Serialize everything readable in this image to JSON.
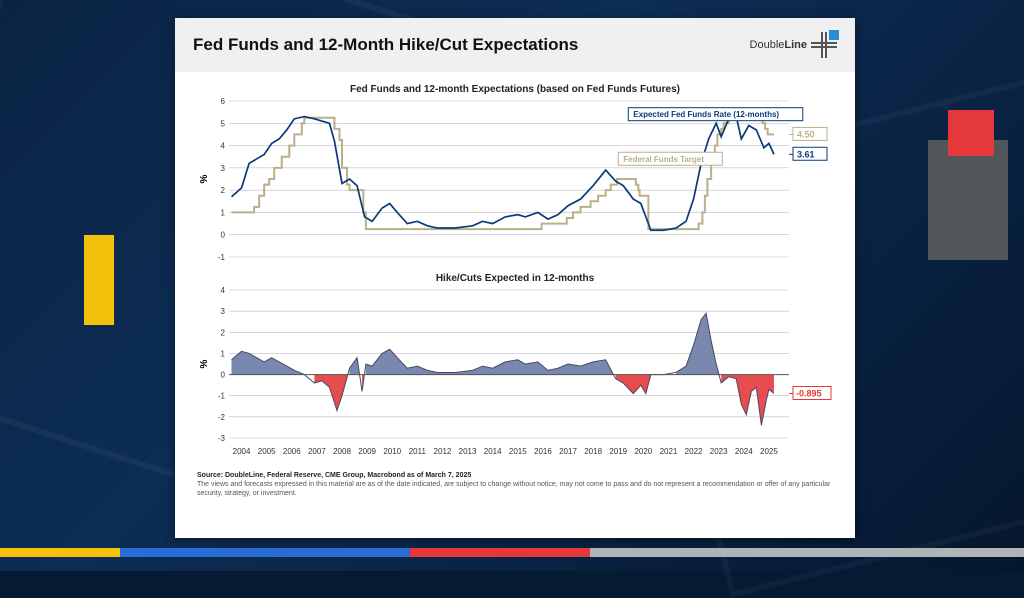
{
  "slide": {
    "title": "Fed Funds and 12-Month Hike/Cut Expectations",
    "logo_text_a": "Double",
    "logo_text_b": "Line",
    "brand_blue": "#2a8bd6"
  },
  "backdrop": {
    "strip_colors": [
      "#f4c20d",
      "#2a6cd6",
      "#e5383b",
      "#b0b4b8"
    ],
    "strip_widths": [
      120,
      290,
      180,
      434
    ]
  },
  "chart1": {
    "type": "line",
    "title": "Fed Funds and 12-month Expectations (based on Fed Funds Futures)",
    "ylabel": "%",
    "ylim": [
      -1,
      6
    ],
    "ytick_step": 1,
    "x_years": [
      2004,
      2005,
      2006,
      2007,
      2008,
      2009,
      2010,
      2011,
      2012,
      2013,
      2014,
      2015,
      2016,
      2017,
      2018,
      2019,
      2020,
      2021,
      2022,
      2023,
      2024,
      2025
    ],
    "xlim": [
      2003.5,
      2025.8
    ],
    "grid_color": "#bfbfbf",
    "background": "#ffffff",
    "series": {
      "expected": {
        "label": "Expected Fed Funds Rate (12-months)",
        "color": "#0b3a78",
        "width": 1.7,
        "end_value": 3.61,
        "points": [
          [
            2003.6,
            1.7
          ],
          [
            2004.0,
            2.1
          ],
          [
            2004.3,
            3.2
          ],
          [
            2004.6,
            3.4
          ],
          [
            2004.9,
            3.6
          ],
          [
            2005.2,
            4.1
          ],
          [
            2005.5,
            4.3
          ],
          [
            2005.8,
            4.7
          ],
          [
            2006.1,
            5.2
          ],
          [
            2006.5,
            5.3
          ],
          [
            2006.9,
            5.2
          ],
          [
            2007.2,
            5.1
          ],
          [
            2007.5,
            5.0
          ],
          [
            2007.7,
            4.2
          ],
          [
            2008.0,
            2.3
          ],
          [
            2008.3,
            2.5
          ],
          [
            2008.6,
            2.2
          ],
          [
            2008.9,
            0.8
          ],
          [
            2009.2,
            0.6
          ],
          [
            2009.6,
            1.2
          ],
          [
            2009.9,
            1.4
          ],
          [
            2010.2,
            1.0
          ],
          [
            2010.6,
            0.5
          ],
          [
            2011.0,
            0.6
          ],
          [
            2011.4,
            0.4
          ],
          [
            2011.8,
            0.3
          ],
          [
            2012.5,
            0.3
          ],
          [
            2013.2,
            0.4
          ],
          [
            2013.6,
            0.6
          ],
          [
            2014.0,
            0.5
          ],
          [
            2014.5,
            0.8
          ],
          [
            2015.0,
            0.9
          ],
          [
            2015.3,
            0.8
          ],
          [
            2015.8,
            1.0
          ],
          [
            2016.2,
            0.7
          ],
          [
            2016.6,
            0.9
          ],
          [
            2017.0,
            1.3
          ],
          [
            2017.5,
            1.6
          ],
          [
            2018.0,
            2.2
          ],
          [
            2018.5,
            2.9
          ],
          [
            2018.9,
            2.4
          ],
          [
            2019.2,
            2.2
          ],
          [
            2019.6,
            1.6
          ],
          [
            2019.9,
            1.4
          ],
          [
            2020.1,
            0.8
          ],
          [
            2020.3,
            0.2
          ],
          [
            2020.8,
            0.2
          ],
          [
            2021.3,
            0.3
          ],
          [
            2021.7,
            0.6
          ],
          [
            2022.0,
            1.6
          ],
          [
            2022.3,
            3.2
          ],
          [
            2022.6,
            4.3
          ],
          [
            2022.9,
            5.0
          ],
          [
            2023.1,
            4.4
          ],
          [
            2023.4,
            5.2
          ],
          [
            2023.7,
            5.3
          ],
          [
            2023.9,
            4.3
          ],
          [
            2024.2,
            4.9
          ],
          [
            2024.5,
            4.7
          ],
          [
            2024.8,
            3.9
          ],
          [
            2025.0,
            4.1
          ],
          [
            2025.2,
            3.61
          ]
        ]
      },
      "target": {
        "label": "Federal Funds Target",
        "color": "#b9b08a",
        "width": 2.0,
        "end_value": 4.5,
        "points": [
          [
            2003.6,
            1.0
          ],
          [
            2004.4,
            1.0
          ],
          [
            2004.5,
            1.25
          ],
          [
            2004.7,
            1.75
          ],
          [
            2004.9,
            2.25
          ],
          [
            2005.1,
            2.5
          ],
          [
            2005.3,
            3.0
          ],
          [
            2005.6,
            3.5
          ],
          [
            2005.9,
            4.0
          ],
          [
            2006.1,
            4.5
          ],
          [
            2006.4,
            5.0
          ],
          [
            2006.5,
            5.25
          ],
          [
            2007.6,
            5.25
          ],
          [
            2007.7,
            4.75
          ],
          [
            2007.9,
            4.25
          ],
          [
            2008.0,
            3.0
          ],
          [
            2008.2,
            2.25
          ],
          [
            2008.3,
            2.0
          ],
          [
            2008.8,
            2.0
          ],
          [
            2008.85,
            1.0
          ],
          [
            2008.95,
            0.25
          ],
          [
            2015.9,
            0.25
          ],
          [
            2015.95,
            0.5
          ],
          [
            2016.9,
            0.5
          ],
          [
            2016.95,
            0.75
          ],
          [
            2017.2,
            1.0
          ],
          [
            2017.5,
            1.25
          ],
          [
            2017.9,
            1.5
          ],
          [
            2018.2,
            1.75
          ],
          [
            2018.5,
            2.0
          ],
          [
            2018.7,
            2.25
          ],
          [
            2018.95,
            2.5
          ],
          [
            2019.6,
            2.5
          ],
          [
            2019.7,
            2.25
          ],
          [
            2019.8,
            2.0
          ],
          [
            2019.85,
            1.75
          ],
          [
            2020.15,
            1.75
          ],
          [
            2020.2,
            0.25
          ],
          [
            2022.15,
            0.25
          ],
          [
            2022.2,
            0.5
          ],
          [
            2022.35,
            1.0
          ],
          [
            2022.45,
            1.75
          ],
          [
            2022.55,
            2.5
          ],
          [
            2022.7,
            3.25
          ],
          [
            2022.85,
            4.0
          ],
          [
            2022.95,
            4.5
          ],
          [
            2023.1,
            4.75
          ],
          [
            2023.2,
            5.0
          ],
          [
            2023.4,
            5.25
          ],
          [
            2023.6,
            5.5
          ],
          [
            2024.7,
            5.5
          ],
          [
            2024.75,
            5.0
          ],
          [
            2024.85,
            4.75
          ],
          [
            2024.95,
            4.5
          ],
          [
            2025.2,
            4.5
          ]
        ]
      }
    }
  },
  "chart2": {
    "type": "area",
    "title": "Hike/Cuts Expected in 12-months",
    "ylabel": "%",
    "ylim": [
      -3,
      4
    ],
    "ytick_step": 1,
    "x_years": [
      2004,
      2005,
      2006,
      2007,
      2008,
      2009,
      2010,
      2011,
      2012,
      2013,
      2014,
      2015,
      2016,
      2017,
      2018,
      2019,
      2020,
      2021,
      2022,
      2023,
      2024,
      2025
    ],
    "xlim": [
      2003.5,
      2025.8
    ],
    "pos_color": "#6b7aa6",
    "neg_color": "#e5383b",
    "line_color": "#444a66",
    "end_value": -0.895,
    "points": [
      [
        2003.6,
        0.7
      ],
      [
        2004.0,
        1.1
      ],
      [
        2004.3,
        1.0
      ],
      [
        2004.6,
        0.8
      ],
      [
        2004.9,
        0.6
      ],
      [
        2005.2,
        0.8
      ],
      [
        2005.5,
        0.6
      ],
      [
        2005.8,
        0.4
      ],
      [
        2006.1,
        0.2
      ],
      [
        2006.5,
        0.0
      ],
      [
        2006.9,
        -0.4
      ],
      [
        2007.2,
        -0.3
      ],
      [
        2007.5,
        -0.6
      ],
      [
        2007.8,
        -1.7
      ],
      [
        2008.0,
        -1.0
      ],
      [
        2008.3,
        0.3
      ],
      [
        2008.6,
        0.8
      ],
      [
        2008.8,
        -0.8
      ],
      [
        2008.95,
        0.5
      ],
      [
        2009.2,
        0.4
      ],
      [
        2009.6,
        1.0
      ],
      [
        2009.9,
        1.2
      ],
      [
        2010.2,
        0.8
      ],
      [
        2010.6,
        0.3
      ],
      [
        2011.0,
        0.4
      ],
      [
        2011.4,
        0.2
      ],
      [
        2011.8,
        0.1
      ],
      [
        2012.5,
        0.1
      ],
      [
        2013.2,
        0.2
      ],
      [
        2013.6,
        0.4
      ],
      [
        2014.0,
        0.3
      ],
      [
        2014.5,
        0.6
      ],
      [
        2015.0,
        0.7
      ],
      [
        2015.3,
        0.5
      ],
      [
        2015.8,
        0.6
      ],
      [
        2016.2,
        0.2
      ],
      [
        2016.6,
        0.3
      ],
      [
        2017.0,
        0.5
      ],
      [
        2017.5,
        0.4
      ],
      [
        2018.0,
        0.6
      ],
      [
        2018.5,
        0.7
      ],
      [
        2018.9,
        -0.2
      ],
      [
        2019.2,
        -0.4
      ],
      [
        2019.6,
        -0.9
      ],
      [
        2019.9,
        -0.5
      ],
      [
        2020.1,
        -0.9
      ],
      [
        2020.3,
        0.0
      ],
      [
        2020.8,
        0.0
      ],
      [
        2021.3,
        0.1
      ],
      [
        2021.7,
        0.4
      ],
      [
        2022.0,
        1.4
      ],
      [
        2022.3,
        2.6
      ],
      [
        2022.5,
        2.9
      ],
      [
        2022.7,
        1.6
      ],
      [
        2022.9,
        0.5
      ],
      [
        2023.1,
        -0.4
      ],
      [
        2023.4,
        -0.1
      ],
      [
        2023.7,
        -0.2
      ],
      [
        2023.9,
        -1.4
      ],
      [
        2024.1,
        -1.9
      ],
      [
        2024.3,
        -0.8
      ],
      [
        2024.5,
        -0.6
      ],
      [
        2024.7,
        -2.4
      ],
      [
        2024.9,
        -1.2
      ],
      [
        2025.0,
        -0.7
      ],
      [
        2025.2,
        -0.895
      ]
    ]
  },
  "footer": {
    "source": "Source: DoubleLine, Federal Reserve, CME Group, Macrobond as of March 7, 2025",
    "disclaimer": "The views and forecasts expressed in this material are as of the date indicated, are subject to change without notice, may not come to pass and do not represent a recommendation or offer of any particular security, strategy, or investment."
  }
}
